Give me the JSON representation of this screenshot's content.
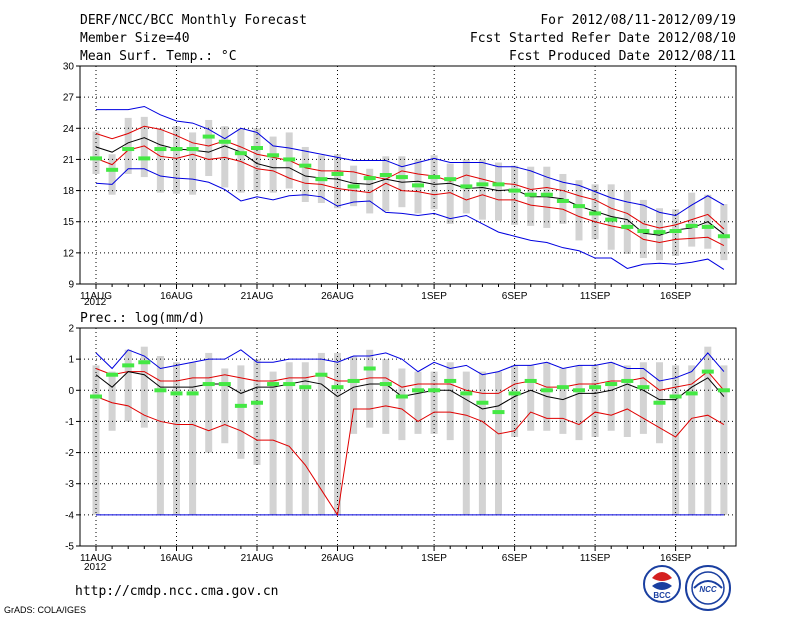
{
  "header": {
    "title": "DERF/NCC/BCC Monthly Forecast",
    "member_size": "Member Size=40",
    "variable": "Mean Surf. Temp.: °C",
    "period": "For 2012/08/11-2012/09/19",
    "fcst_started": "Fcst Started Refer Date 2012/08/10",
    "fcst_produced": "Fcst Produced Date 2012/08/11"
  },
  "footer": {
    "url": "http://cmdp.ncc.cma.gov.cn",
    "grads": "GrADS: COLA/IGES",
    "year_label": "2012",
    "logo_left": "BCC",
    "logo_right": "NCC"
  },
  "colors": {
    "blue": "#0000e0",
    "red": "#e00000",
    "mean": "#000000",
    "box": "#d3d3d3",
    "green": "#44e844"
  },
  "chart_data": [
    {
      "type": "box-ensemble",
      "title": "Mean Surf. Temp.: °C",
      "xlabel": "",
      "ylabel": "",
      "ylim": [
        9,
        30
      ],
      "yticks": [
        9,
        12,
        15,
        18,
        21,
        24,
        27,
        30
      ],
      "xtick_labels": [
        "11AUG",
        "16AUG",
        "21AUG",
        "26AUG",
        "1SEP",
        "6SEP",
        "11SEP",
        "16SEP"
      ],
      "xtick_days": [
        0,
        5,
        10,
        15,
        21,
        26,
        31,
        36
      ],
      "n_days": 40,
      "series": [
        {
          "name": "max",
          "color": "blue",
          "values": [
            25.8,
            25.8,
            25.8,
            26.1,
            25.3,
            24.7,
            24.5,
            23.9,
            23.0,
            24.0,
            23.6,
            22.3,
            22.1,
            21.8,
            21.5,
            21.2,
            20.9,
            20.9,
            20.9,
            20.3,
            20.7,
            21.1,
            20.7,
            20.7,
            20.7,
            20.3,
            20.3,
            19.9,
            19.3,
            18.8,
            18.5,
            17.9,
            17.3,
            16.9,
            16.6,
            15.9,
            15.6,
            16.6,
            17.5,
            16.6
          ]
        },
        {
          "name": "upper",
          "color": "red",
          "values": [
            23.5,
            23.0,
            23.5,
            24.2,
            23.9,
            23.3,
            22.6,
            22.3,
            22.8,
            22.2,
            21.5,
            21.2,
            20.9,
            20.2,
            19.9,
            19.9,
            19.8,
            19.4,
            19.1,
            19.9,
            19.6,
            19.4,
            18.9,
            19.5,
            19.1,
            18.7,
            18.6,
            18.1,
            18.3,
            18.0,
            17.5,
            17.1,
            16.3,
            15.8,
            14.8,
            14.4,
            14.7,
            15.2,
            15.7,
            14.3
          ]
        },
        {
          "name": "mean",
          "color": "mean",
          "values": [
            22.2,
            21.7,
            22.6,
            23.1,
            22.4,
            22.0,
            21.9,
            21.7,
            22.3,
            21.7,
            20.6,
            20.2,
            20.2,
            19.4,
            19.2,
            19.1,
            18.7,
            18.6,
            19.1,
            18.8,
            18.9,
            18.6,
            18.7,
            18.2,
            18.3,
            18.0,
            18.1,
            17.4,
            17.4,
            17.2,
            16.5,
            16.0,
            15.5,
            15.2,
            13.9,
            13.7,
            14.2,
            14.4,
            15.0,
            13.8
          ]
        },
        {
          "name": "lower",
          "color": "red",
          "values": [
            21.1,
            20.5,
            21.9,
            22.3,
            21.3,
            21.1,
            21.5,
            21.0,
            21.2,
            20.8,
            20.1,
            19.9,
            19.2,
            18.7,
            18.6,
            18.2,
            18.0,
            17.8,
            18.7,
            18.0,
            17.9,
            17.6,
            17.8,
            17.1,
            17.6,
            17.1,
            17.1,
            16.6,
            16.4,
            16.2,
            15.5,
            15.0,
            14.6,
            14.3,
            13.3,
            13.0,
            13.3,
            13.4,
            13.5,
            12.7
          ]
        },
        {
          "name": "min",
          "color": "blue",
          "values": [
            18.7,
            18.6,
            20.1,
            20.1,
            19.4,
            19.2,
            19.1,
            18.8,
            18.1,
            17.0,
            17.4,
            17.1,
            17.5,
            17.6,
            17.4,
            16.5,
            16.9,
            17.0,
            15.9,
            15.8,
            15.6,
            15.8,
            15.3,
            15.6,
            14.8,
            14.0,
            13.6,
            13.2,
            13.0,
            12.5,
            12.2,
            11.5,
            11.5,
            10.5,
            10.9,
            11.0,
            10.9,
            11.1,
            11.4,
            10.4
          ]
        },
        {
          "name": "obs",
          "color": "green",
          "values": [
            21.1,
            20.0,
            22.0,
            21.1,
            22.0,
            22.0,
            22.0,
            23.2,
            22.7,
            21.6,
            22.1,
            21.4,
            21.0,
            20.4,
            19.1,
            19.6,
            18.4,
            19.2,
            19.5,
            19.3,
            18.5,
            19.3,
            19.1,
            18.4,
            18.6,
            18.6,
            18.0,
            17.6,
            17.6,
            17.0,
            16.5,
            15.8,
            15.2,
            14.5,
            14.1,
            14.0,
            14.1,
            14.6,
            14.5,
            13.6
          ]
        }
      ],
      "box_top": [
        23.7,
        21.5,
        25.0,
        25.1,
        24.0,
        24.2,
        23.6,
        24.8,
        24.2,
        24.0,
        24.0,
        23.2,
        23.6,
        22.2,
        21.4,
        21.5,
        20.4,
        20.1,
        21.3,
        21.3,
        21.0,
        21.4,
        20.6,
        21.0,
        21.0,
        20.7,
        20.4,
        20.3,
        20.3,
        19.6,
        19.0,
        18.6,
        18.6,
        18.0,
        17.1,
        16.3,
        16.2,
        17.8,
        17.6,
        16.7
      ],
      "box_bottom": [
        19.6,
        17.6,
        19.6,
        19.3,
        17.8,
        17.7,
        17.6,
        19.4,
        18.3,
        17.8,
        17.9,
        17.8,
        18.2,
        16.9,
        16.8,
        16.3,
        16.5,
        15.8,
        16.0,
        16.4,
        15.8,
        16.2,
        14.8,
        15.8,
        15.2,
        15.1,
        14.7,
        14.6,
        14.4,
        14.8,
        13.2,
        13.3,
        12.3,
        11.9,
        11.5,
        11.3,
        11.7,
        12.6,
        12.4,
        11.3
      ]
    },
    {
      "type": "box-ensemble",
      "title": "Prec.: log(mm/d)",
      "xlabel": "",
      "ylabel": "",
      "ylim": [
        -5,
        2
      ],
      "yticks": [
        -5,
        -4,
        -3,
        -2,
        -1,
        0,
        1,
        2
      ],
      "xtick_labels": [
        "11AUG",
        "16AUG",
        "21AUG",
        "26AUG",
        "1SEP",
        "6SEP",
        "11SEP",
        "16SEP"
      ],
      "xtick_days": [
        0,
        5,
        10,
        15,
        21,
        26,
        31,
        36
      ],
      "n_days": 40,
      "series": [
        {
          "name": "max",
          "color": "blue",
          "values": [
            1.2,
            0.7,
            1.3,
            1.1,
            0.7,
            0.8,
            0.9,
            1.0,
            1.0,
            1.3,
            0.9,
            0.9,
            1.0,
            1.0,
            1.0,
            0.9,
            1.1,
            1.1,
            1.2,
            1.0,
            0.6,
            0.9,
            0.7,
            0.8,
            0.5,
            0.6,
            0.8,
            0.8,
            0.9,
            0.7,
            0.8,
            0.8,
            0.9,
            0.7,
            0.7,
            0.3,
            0.4,
            0.6,
            1.2,
            0.6
          ]
        },
        {
          "name": "upper",
          "color": "red",
          "values": [
            0.7,
            0.5,
            0.6,
            0.6,
            0.3,
            0.3,
            0.4,
            0.4,
            0.5,
            0.4,
            0.3,
            0.3,
            0.4,
            0.4,
            0.5,
            0.3,
            0.3,
            0.4,
            0.4,
            0.1,
            0.2,
            0.2,
            0.2,
            0.0,
            -0.1,
            -0.1,
            0.2,
            0.3,
            0.1,
            0.1,
            0.2,
            0.2,
            0.3,
            0.3,
            0.4,
            0.0,
            0.1,
            0.2,
            0.6,
            0.0
          ]
        },
        {
          "name": "mean",
          "color": "mean",
          "values": [
            0.5,
            0.1,
            0.6,
            0.5,
            0.1,
            0.1,
            0.1,
            0.2,
            0.2,
            -0.1,
            0.1,
            0.1,
            0.2,
            0.3,
            0.2,
            -0.2,
            0.1,
            0.2,
            0.2,
            -0.2,
            -0.1,
            0.0,
            0.0,
            -0.3,
            -0.6,
            -0.5,
            -0.2,
            0.0,
            -0.2,
            -0.3,
            -0.1,
            -0.1,
            0.0,
            0.2,
            0.0,
            -0.3,
            -0.3,
            0.1,
            0.4,
            -0.2
          ]
        },
        {
          "name": "lower",
          "color": "red",
          "values": [
            -0.2,
            -0.4,
            -0.5,
            -0.8,
            -1.0,
            -1.1,
            -1.1,
            -1.3,
            -1.1,
            -1.3,
            -1.6,
            -1.6,
            -1.8,
            -2.4,
            -3.0,
            -4.0,
            -4.0,
            -4.0,
            -4.0,
            -4.0,
            -4.0,
            -4.0,
            -4.0,
            -4.0,
            -4.0,
            -4.0,
            -4.0,
            -4.0,
            -4.0,
            -4.0,
            -4.0,
            -4.0,
            -4.0,
            -4.0,
            -4.0,
            -4.0,
            -4.0,
            -4.0,
            -4.0,
            -4.0
          ]
        },
        {
          "name": "lower_red",
          "color": "red",
          "values": [
            -0.2,
            -0.4,
            -0.5,
            -0.8,
            -1.0,
            -1.1,
            -1.1,
            -1.3,
            -1.1,
            -1.3,
            -1.6,
            -1.6,
            -1.8,
            -2.4,
            -3.2,
            -4.0,
            -0.6,
            -0.6,
            -0.5,
            -0.6,
            -1.0,
            -0.7,
            -0.7,
            -0.8,
            -1.0,
            -1.4,
            -1.3,
            -0.7,
            -0.9,
            -0.9,
            -1.1,
            -0.7,
            -0.8,
            -0.6,
            -0.9,
            -1.2,
            -1.5,
            -0.9,
            -0.8,
            -1.1
          ]
        },
        {
          "name": "min",
          "color": "blue",
          "values": [
            -4.0,
            -4.0,
            -4.0,
            -4.0,
            -4.0,
            -4.0,
            -4.0,
            -4.0,
            -4.0,
            -4.0,
            -4.0,
            -4.0,
            -4.0,
            -4.0,
            -4.0,
            -4.0,
            -4.0,
            -4.0,
            -4.0,
            -4.0,
            -4.0,
            -4.0,
            -4.0,
            -4.0,
            -4.0,
            -4.0,
            -4.0,
            -4.0,
            -4.0,
            -4.0,
            -4.0,
            -4.0,
            -4.0,
            -4.0,
            -4.0,
            -4.0,
            -4.0,
            -4.0,
            -4.0,
            -4.0
          ]
        },
        {
          "name": "obs",
          "color": "green",
          "values": [
            -0.2,
            0.5,
            0.8,
            0.9,
            0.0,
            -0.1,
            -0.1,
            0.2,
            0.2,
            -0.5,
            -0.4,
            0.2,
            0.2,
            0.1,
            0.5,
            0.1,
            0.3,
            0.7,
            0.2,
            -0.2,
            0.0,
            0.0,
            0.3,
            -0.1,
            -0.4,
            -0.7,
            -0.1,
            0.3,
            0.0,
            0.1,
            0.0,
            0.1,
            0.2,
            0.3,
            0.1,
            -0.4,
            -0.2,
            -0.1,
            0.6,
            0.0
          ]
        }
      ],
      "box_top": [
        0.8,
        0.6,
        1.3,
        1.4,
        1.1,
        0.9,
        0.9,
        1.2,
        0.7,
        0.8,
        1.0,
        0.6,
        0.9,
        0.9,
        1.2,
        1.2,
        1.1,
        1.3,
        1.0,
        0.7,
        0.6,
        0.6,
        0.9,
        0.6,
        0.6,
        0.6,
        0.8,
        0.8,
        0.9,
        0.7,
        0.8,
        0.8,
        0.9,
        0.8,
        0.9,
        0.9,
        0.8,
        0.8,
        1.4,
        0.8
      ],
      "box_bottom": [
        -4.0,
        -1.3,
        -1.0,
        -1.2,
        -4.0,
        -4.0,
        -4.0,
        -2.0,
        -1.7,
        -2.2,
        -2.4,
        -4.0,
        -4.0,
        -4.0,
        -4.0,
        -4.0,
        -1.4,
        -1.2,
        -1.4,
        -1.6,
        -1.4,
        -1.4,
        -1.6,
        -4.0,
        -4.0,
        -4.0,
        -1.5,
        -1.3,
        -1.3,
        -1.4,
        -1.6,
        -1.5,
        -1.3,
        -1.5,
        -1.4,
        -1.7,
        -4.0,
        -4.0,
        -4.0,
        -4.0
      ]
    }
  ]
}
